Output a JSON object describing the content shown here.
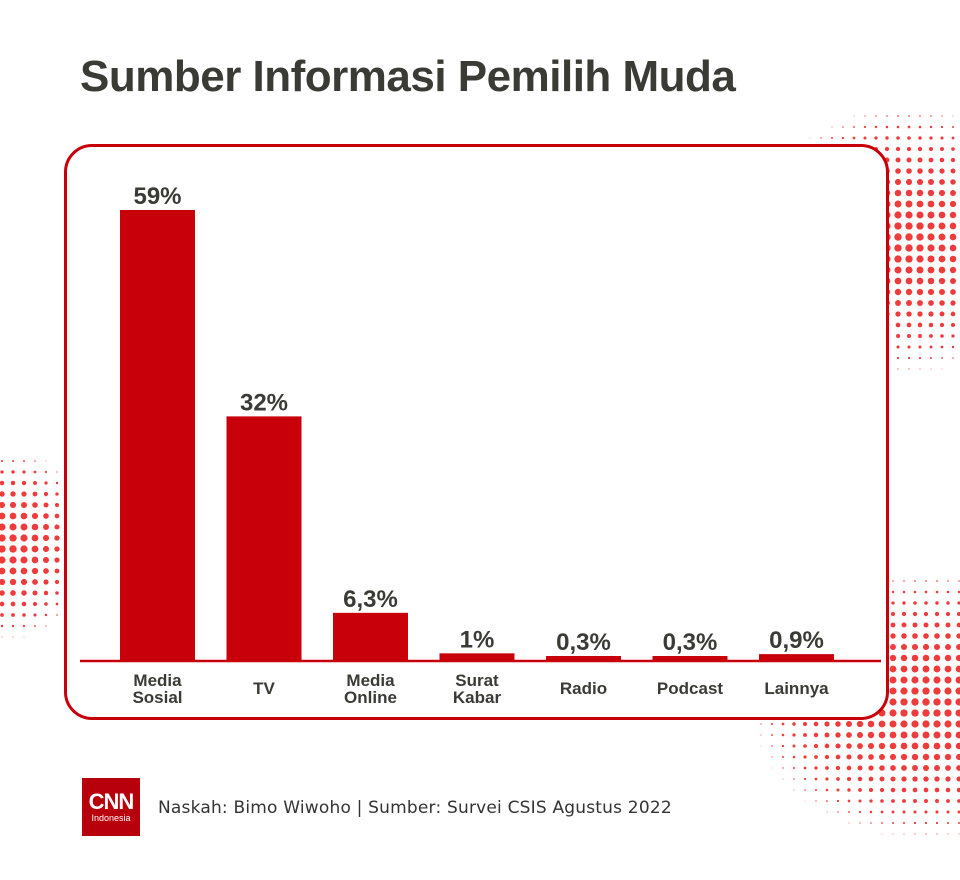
{
  "title": "Sumber Informasi Pemilih Muda",
  "credit": "Naskah: Bimo Wiwoho | Sumber: Survei CSIS Agustus 2022",
  "logo": {
    "main": "CNN",
    "sub": "Indonesia"
  },
  "colors": {
    "bar": "#c8000a",
    "text": "#3a3b35",
    "dots": "#ee3b3b"
  },
  "chart_data": {
    "type": "bar",
    "categories": [
      [
        "Media",
        "Sosial"
      ],
      [
        "TV"
      ],
      [
        "Media",
        "Online"
      ],
      [
        "Surat",
        "Kabar"
      ],
      [
        "Radio"
      ],
      [
        "Podcast"
      ],
      [
        "Lainnya"
      ]
    ],
    "values": [
      59,
      32,
      6.3,
      1,
      0.3,
      0.3,
      0.9
    ],
    "labels": [
      "59%",
      "32%",
      "6,3%",
      "1%",
      "0,3%",
      "0,3%",
      "0,9%"
    ],
    "unit": "%",
    "ylim": [
      0,
      59
    ],
    "grid": false
  }
}
